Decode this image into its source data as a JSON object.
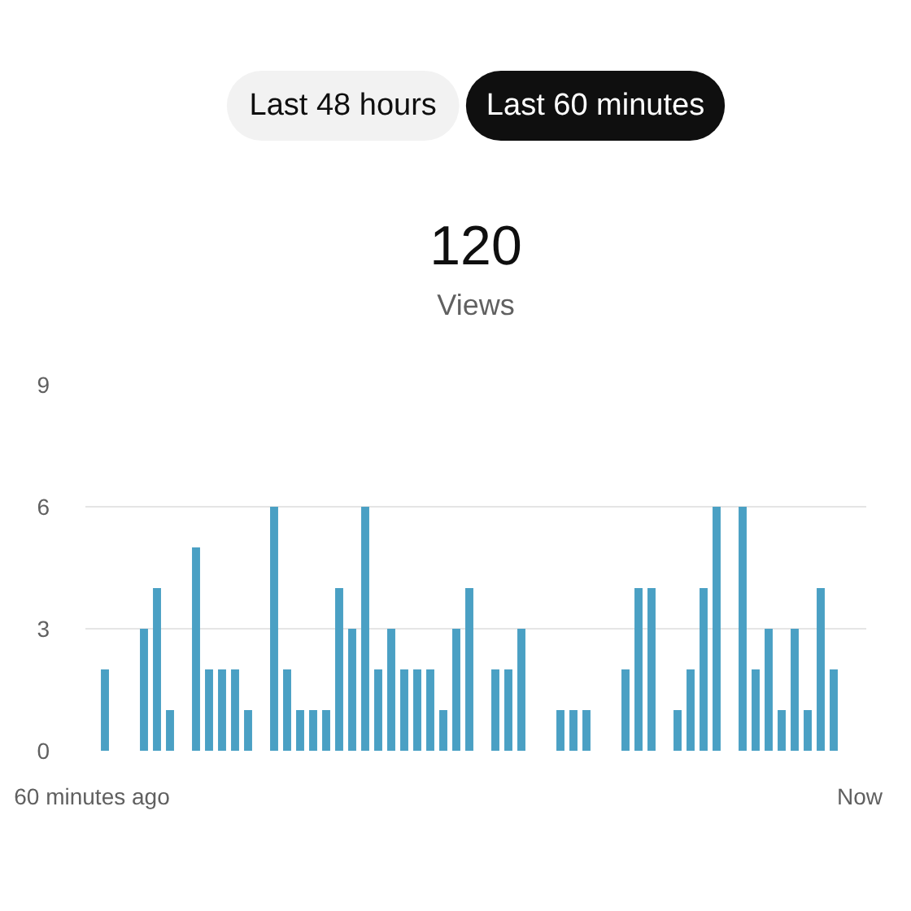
{
  "chart_data": {
    "type": "bar",
    "title": "120",
    "subtitle": "Views",
    "annotations": [
      "Last 48 hours",
      "Last 60 minutes"
    ],
    "categories": [
      "60 minutes ago",
      null,
      null,
      null,
      null,
      null,
      null,
      null,
      null,
      null,
      null,
      null,
      null,
      null,
      null,
      null,
      null,
      null,
      null,
      null,
      null,
      null,
      null,
      null,
      null,
      null,
      null,
      null,
      null,
      null,
      null,
      null,
      null,
      null,
      null,
      null,
      null,
      null,
      null,
      null,
      null,
      null,
      null,
      null,
      null,
      null,
      null,
      null,
      null,
      null,
      null,
      null,
      null,
      null,
      null,
      null,
      null,
      null,
      null,
      "Now"
    ],
    "values": [
      0,
      2,
      0,
      0,
      3,
      4,
      1,
      0,
      5,
      2,
      2,
      2,
      1,
      0,
      6,
      2,
      1,
      1,
      1,
      4,
      3,
      6,
      2,
      3,
      2,
      2,
      2,
      1,
      3,
      4,
      0,
      2,
      2,
      3,
      0,
      0,
      1,
      1,
      1,
      0,
      0,
      2,
      4,
      4,
      0,
      1,
      2,
      4,
      6,
      0,
      6,
      2,
      3,
      1,
      3,
      1,
      4,
      2,
      0,
      0
    ],
    "color": "#4aa0c4",
    "ylim": [
      0,
      9
    ],
    "yticks": [
      0,
      3,
      6,
      9
    ],
    "grid": "y"
  }
}
